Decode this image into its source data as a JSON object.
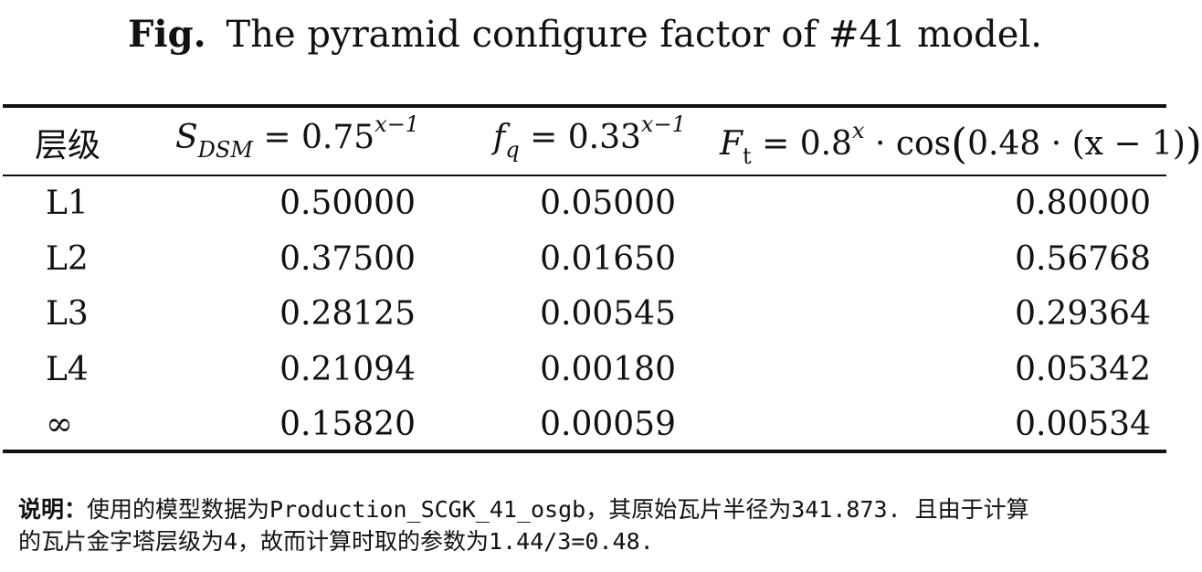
{
  "caption": {
    "label": "Fig.",
    "text": "The pyramid configure factor of #41 model."
  },
  "table": {
    "headers": {
      "level": "层级",
      "s_dsm": {
        "var": "S",
        "sub": "DSM",
        "rest": " = 0.75",
        "sup": "x−1"
      },
      "f_q": {
        "var": "f",
        "sub": "q",
        "rest": " = 0.33",
        "sup": "x−1"
      },
      "f_t": {
        "var": "F",
        "sub": "t",
        "rest": " = 0.8",
        "sup": "x",
        "tail": " · cos",
        "lp": "(",
        "inner": "0.48 · (x − 1)",
        "rp": ")"
      }
    },
    "rows": [
      {
        "level": "L1",
        "s_dsm": "0.50000",
        "f_q": "0.05000",
        "f_t": "0.80000"
      },
      {
        "level": "L2",
        "s_dsm": "0.37500",
        "f_q": "0.01650",
        "f_t": "0.56768"
      },
      {
        "level": "L3",
        "s_dsm": "0.28125",
        "f_q": "0.00545",
        "f_t": "0.29364"
      },
      {
        "level": "L4",
        "s_dsm": "0.21094",
        "f_q": "0.00180",
        "f_t": "0.05342"
      },
      {
        "level": "∞",
        "s_dsm": "0.15820",
        "f_q": "0.00059",
        "f_t": "0.00534"
      }
    ]
  },
  "note": {
    "label": "说明：",
    "line1": "使用的模型数据为Production_SCGK_41_osgb，其原始瓦片半径为341.873. 且由于计算",
    "line2": "的瓦片金字塔层级为4，故而计算时取的参数为1.44/3=0.48."
  }
}
